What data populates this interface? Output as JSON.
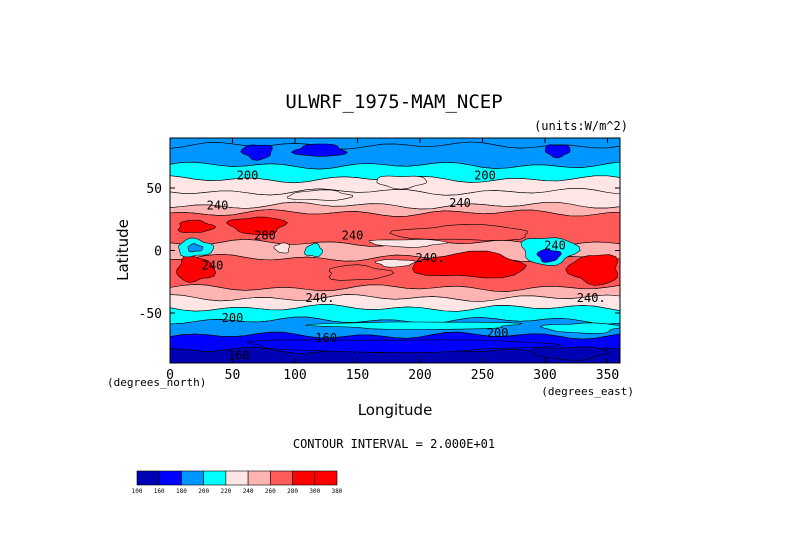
{
  "chart_data": {
    "type": "heatmap",
    "title": "ULWRF_1975-MAM_NCEP",
    "units_label": "(units:W/m^2)",
    "xlabel": "Longitude",
    "ylabel": "Latitude",
    "x_unit_note": "(degrees_east)",
    "y_unit_note": "(degrees_north)",
    "xlim": [
      0,
      360
    ],
    "ylim": [
      -90,
      90
    ],
    "x_ticks": [
      {
        "value": 0,
        "label": "0"
      },
      {
        "value": 50,
        "label": "50"
      },
      {
        "value": 100,
        "label": "100"
      },
      {
        "value": 150,
        "label": "150"
      },
      {
        "value": 200,
        "label": "200"
      },
      {
        "value": 250,
        "label": "250"
      },
      {
        "value": 300,
        "label": "300"
      },
      {
        "value": 350,
        "label": "350"
      }
    ],
    "y_ticks": [
      {
        "value": 50,
        "label": "50"
      },
      {
        "value": 0,
        "label": "0"
      },
      {
        "value": -50,
        "label": "-50"
      }
    ],
    "contour_interval_text": "CONTOUR INTERVAL = 2.000E+01",
    "colorbar": {
      "levels": [
        "100",
        "160",
        "180",
        "200",
        "220",
        "240",
        "260",
        "280",
        "300",
        "380"
      ],
      "colors": [
        "#0000b4",
        "#0000ff",
        "#0096ff",
        "#00ffff",
        "#ffe6e6",
        "#ffb4b4",
        "#ff5a5a",
        "#ff0000",
        "#ff0000"
      ]
    },
    "contour_labels": [
      {
        "text": "200",
        "lon": 62,
        "lat": 60
      },
      {
        "text": "200",
        "lon": 252,
        "lat": 60
      },
      {
        "text": "240",
        "lon": 38,
        "lat": 36
      },
      {
        "text": "240",
        "lon": 232,
        "lat": 38
      },
      {
        "text": "280",
        "lon": 76,
        "lat": 12
      },
      {
        "text": "240",
        "lon": 146,
        "lat": 12
      },
      {
        "text": "240",
        "lon": 308,
        "lat": 4
      },
      {
        "text": "240",
        "lon": 34,
        "lat": -12
      },
      {
        "text": "240.",
        "lon": 208,
        "lat": -6
      },
      {
        "text": "240.",
        "lon": 120,
        "lat": -38
      },
      {
        "text": "240.",
        "lon": 337,
        "lat": -38
      },
      {
        "text": "200",
        "lon": 50,
        "lat": -54
      },
      {
        "text": "200.",
        "lon": 265,
        "lat": -66
      },
      {
        "text": "160",
        "lon": 125,
        "lat": -70
      },
      {
        "text": "160",
        "lon": 55,
        "lat": -84
      }
    ],
    "bands": [
      {
        "lat_top": 90,
        "lat_bot": 84,
        "value": 180
      },
      {
        "lat_top": 84,
        "lat_bot": 68,
        "value": 190
      },
      {
        "lat_top": 68,
        "lat_bot": 57,
        "value": 210
      },
      {
        "lat_top": 57,
        "lat_bot": 47,
        "value": 222
      },
      {
        "lat_top": 47,
        "lat_bot": 36,
        "value": 235
      },
      {
        "lat_top": 36,
        "lat_bot": 30,
        "value": 248
      },
      {
        "lat_top": 30,
        "lat_bot": 6,
        "value": 262
      },
      {
        "lat_top": 6,
        "lat_bot": -6,
        "value": 244
      },
      {
        "lat_top": -6,
        "lat_bot": -30,
        "value": 265
      },
      {
        "lat_top": -30,
        "lat_bot": -38,
        "value": 252
      },
      {
        "lat_top": -38,
        "lat_bot": -46,
        "value": 238
      },
      {
        "lat_top": -46,
        "lat_bot": -56,
        "value": 215
      },
      {
        "lat_top": -56,
        "lat_bot": -68,
        "value": 195
      },
      {
        "lat_top": -68,
        "lat_bot": -80,
        "value": 170
      },
      {
        "lat_top": -80,
        "lat_bot": -90,
        "value": 150
      }
    ],
    "blobs": [
      {
        "lon": 70,
        "lat": 20,
        "rlon": 22,
        "rlat": 7,
        "value": 300
      },
      {
        "lon": 20,
        "lat": 19,
        "rlon": 14,
        "rlat": 5,
        "value": 300
      },
      {
        "lon": 235,
        "lat": 14,
        "rlon": 55,
        "rlat": 6,
        "value": 278
      },
      {
        "lon": 240,
        "lat": -12,
        "rlon": 45,
        "rlat": 10,
        "value": 285
      },
      {
        "lon": 340,
        "lat": -15,
        "rlon": 20,
        "rlat": 12,
        "value": 285
      },
      {
        "lon": 20,
        "lat": -15,
        "rlon": 15,
        "rlat": 10,
        "value": 280
      },
      {
        "lon": 150,
        "lat": -18,
        "rlon": 25,
        "rlat": 6,
        "value": 270
      },
      {
        "lon": 20,
        "lat": 2,
        "rlon": 14,
        "rlat": 7,
        "value": 200
      },
      {
        "lon": 20,
        "lat": 2,
        "rlon": 6,
        "rlat": 3,
        "value": 185
      },
      {
        "lon": 303,
        "lat": 0,
        "rlon": 22,
        "rlat": 11,
        "value": 200
      },
      {
        "lon": 303,
        "lat": -4,
        "rlon": 9,
        "rlat": 5,
        "value": 170
      },
      {
        "lon": 115,
        "lat": 0,
        "rlon": 7,
        "rlat": 5,
        "value": 215
      },
      {
        "lon": 90,
        "lat": 2,
        "rlon": 6,
        "rlat": 4,
        "value": 225
      },
      {
        "lon": 190,
        "lat": 6,
        "rlon": 30,
        "rlat": 3,
        "value": 220
      },
      {
        "lon": 180,
        "lat": -10,
        "rlon": 15,
        "rlat": 3,
        "value": 232
      },
      {
        "lon": 70,
        "lat": 79,
        "rlon": 12,
        "rlat": 6,
        "value": 160
      },
      {
        "lon": 310,
        "lat": 80,
        "rlon": 10,
        "rlat": 5,
        "value": 170
      },
      {
        "lon": 120,
        "lat": 80,
        "rlon": 20,
        "rlat": 5,
        "value": 178
      },
      {
        "lon": 185,
        "lat": 55,
        "rlon": 20,
        "rlat": 5,
        "value": 220
      },
      {
        "lon": 120,
        "lat": 44,
        "rlon": 25,
        "rlat": 4,
        "value": 238
      },
      {
        "lon": 200,
        "lat": -60,
        "rlon": 80,
        "rlat": 3,
        "value": 205
      },
      {
        "lon": 330,
        "lat": -62,
        "rlon": 30,
        "rlat": 4,
        "value": 200
      },
      {
        "lon": 180,
        "lat": -76,
        "rlon": 120,
        "rlat": 5,
        "value": 160
      },
      {
        "lon": 320,
        "lat": -82,
        "rlon": 30,
        "rlat": 5,
        "value": 140
      }
    ]
  }
}
